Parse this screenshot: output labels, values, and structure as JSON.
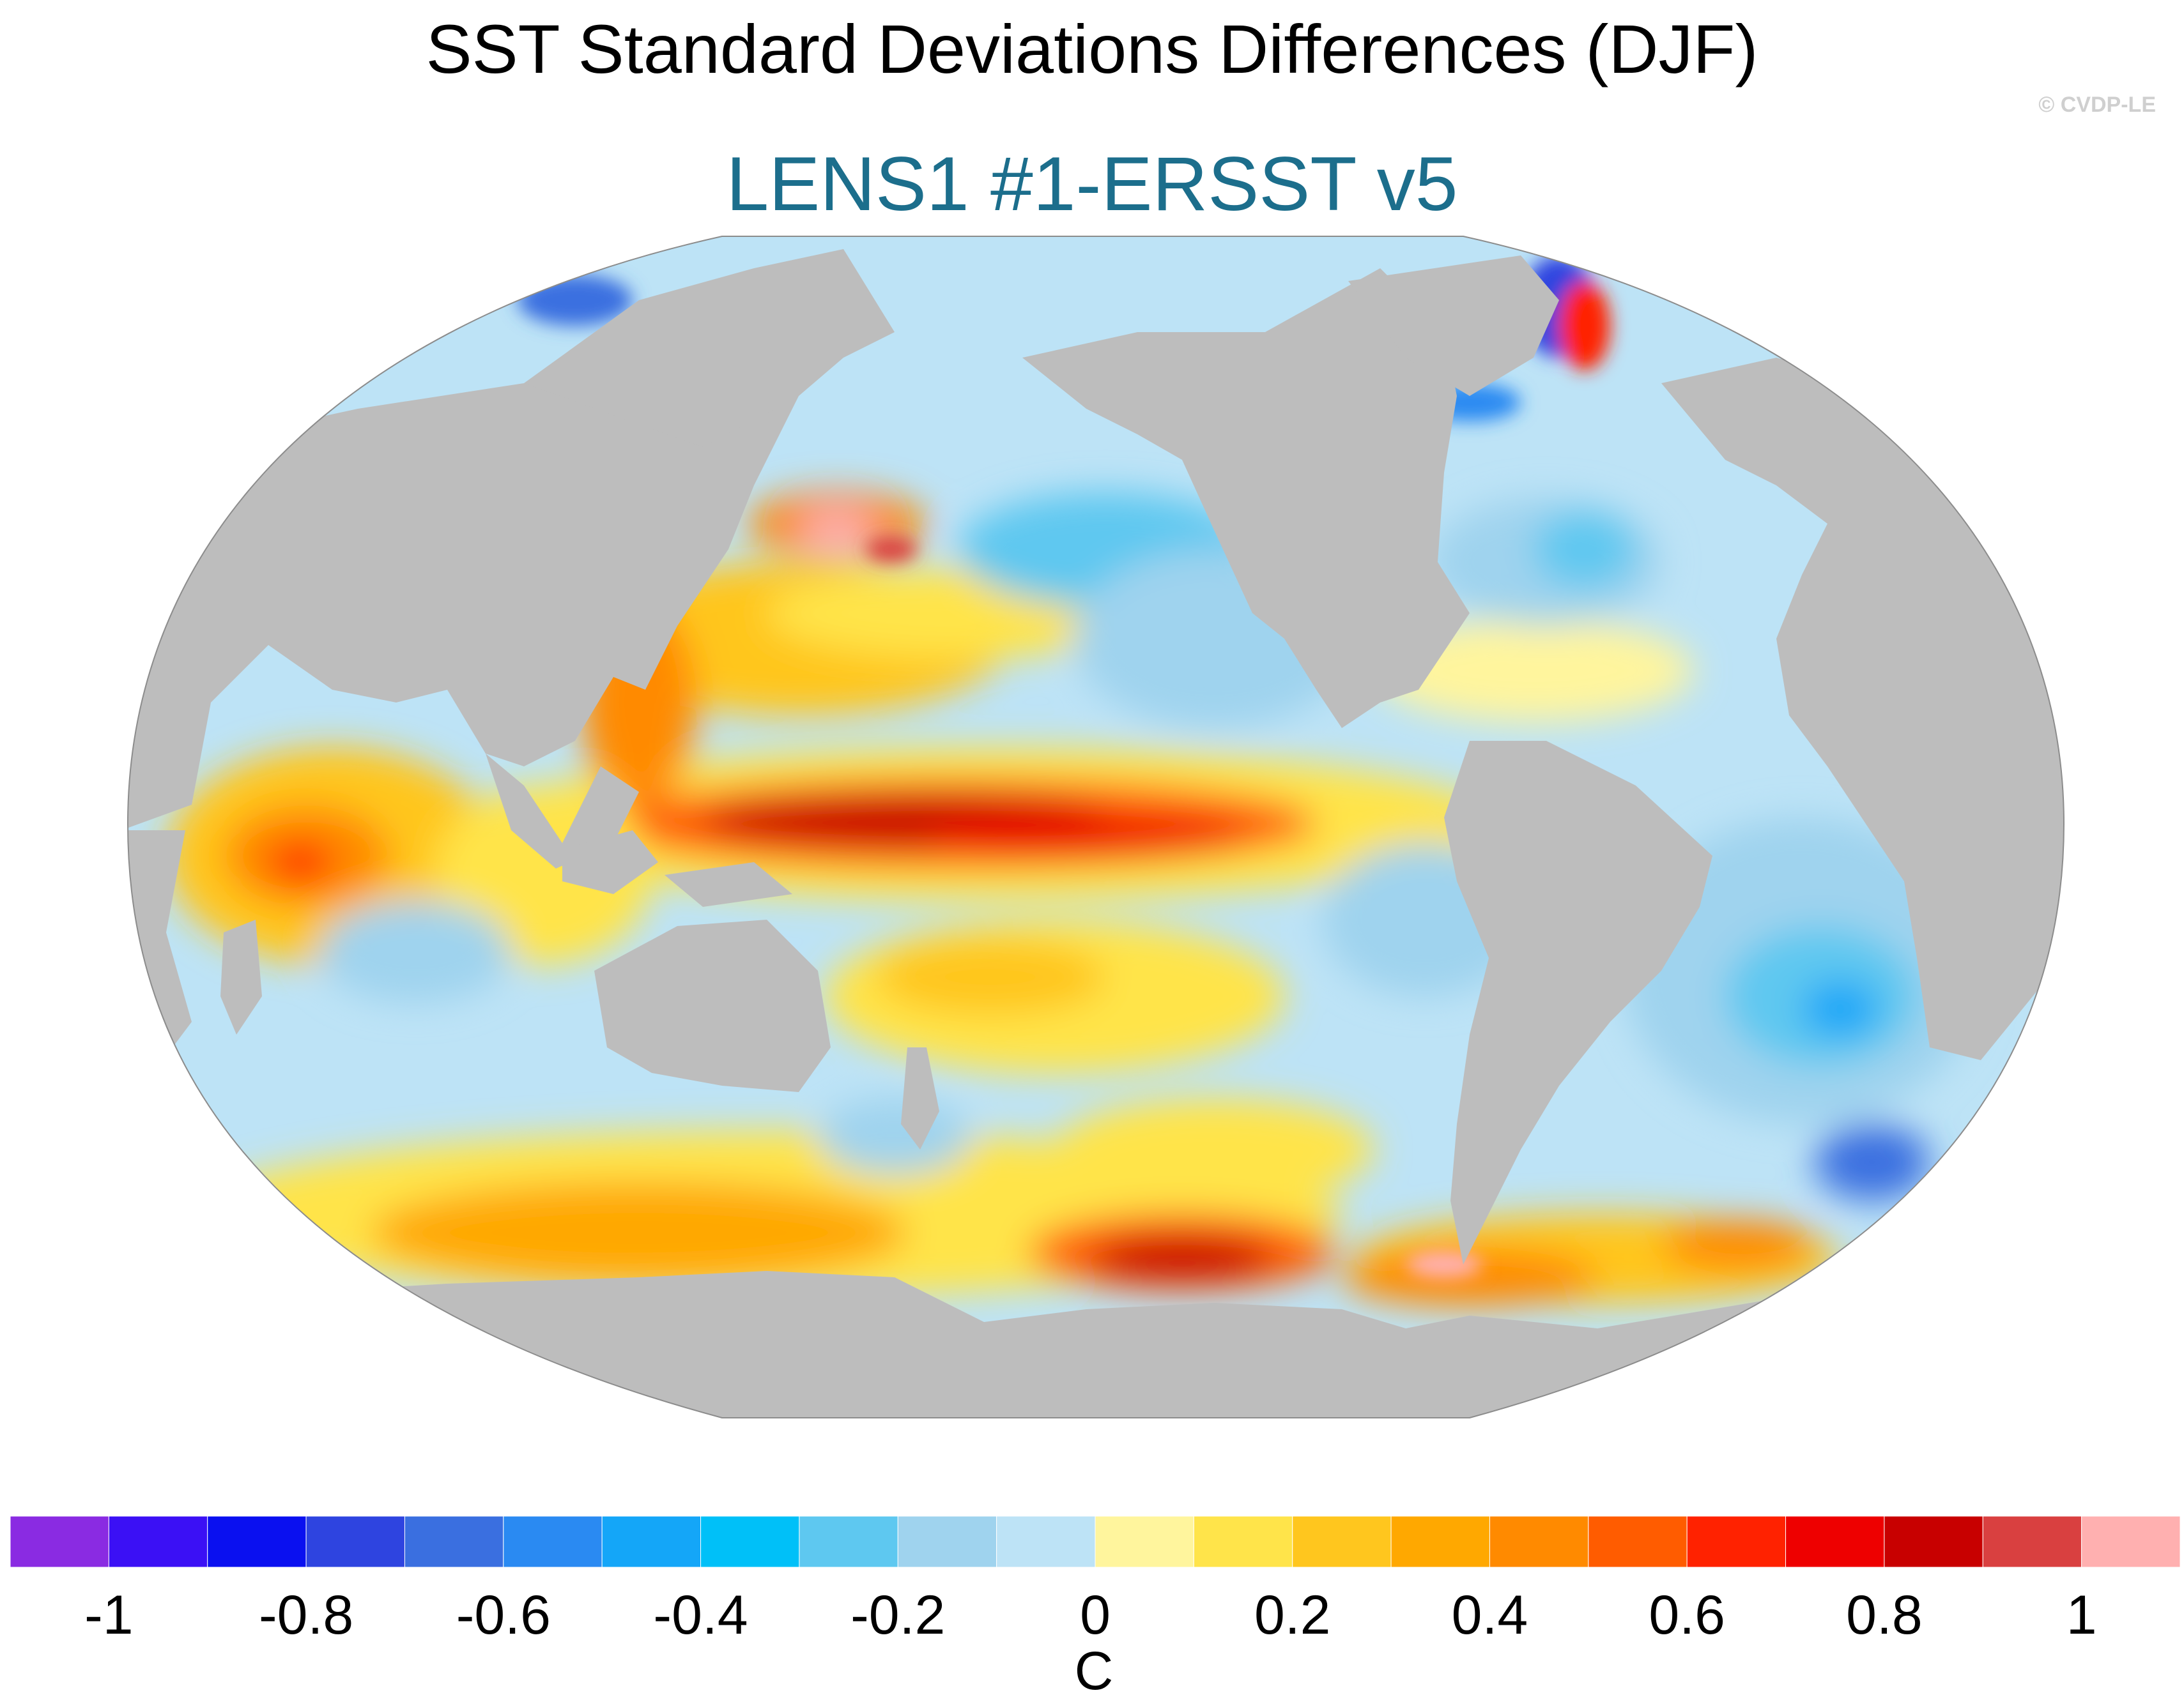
{
  "title": "SST Standard Deviations Differences (DJF)",
  "subtitle": "LENS1 #1-ERSST v5",
  "copyright": "© CVDP-LE",
  "colorbar": {
    "unit": "C",
    "colors": [
      "#8a2be2",
      "#3b10f5",
      "#0a10f0",
      "#2e44e0",
      "#3a6fe0",
      "#2a8af2",
      "#14a6f8",
      "#00c0f8",
      "#5ec8f0",
      "#9fd3ee",
      "#bde3f6",
      "#fff59d",
      "#ffe44a",
      "#ffc61e",
      "#ffa800",
      "#ff8a00",
      "#ff5c00",
      "#ff2200",
      "#ee0000",
      "#c80000",
      "#d94040",
      "#ffb0b0"
    ],
    "ticks": [
      {
        "value": -1,
        "label": "-1"
      },
      {
        "value": -0.8,
        "label": "-0.8"
      },
      {
        "value": -0.6,
        "label": "-0.6"
      },
      {
        "value": -0.4,
        "label": "-0.4"
      },
      {
        "value": -0.2,
        "label": "-0.2"
      },
      {
        "value": 0,
        "label": "0"
      },
      {
        "value": 0.2,
        "label": "0.2"
      },
      {
        "value": 0.4,
        "label": "0.4"
      },
      {
        "value": 0.6,
        "label": "0.6"
      },
      {
        "value": 0.8,
        "label": "0.8"
      },
      {
        "value": 1,
        "label": "1"
      }
    ],
    "range": [
      -1.1,
      1.1
    ]
  }
}
